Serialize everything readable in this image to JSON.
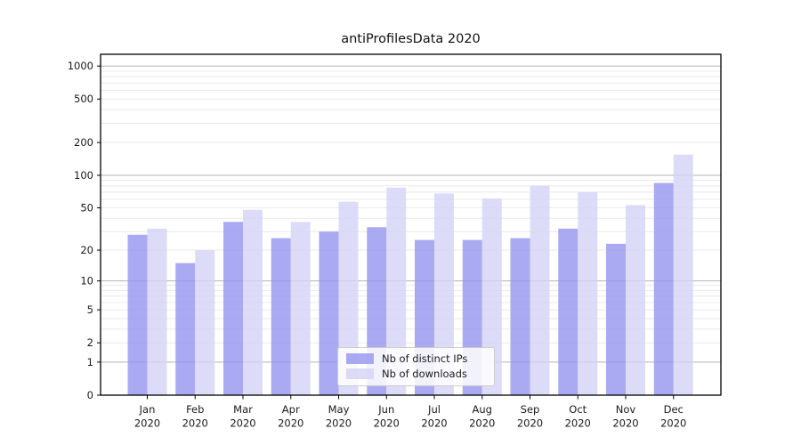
{
  "chart_data": {
    "type": "bar",
    "title": "antiProfilesData 2020",
    "categories": [
      "Jan",
      "Feb",
      "Mar",
      "Apr",
      "May",
      "Jun",
      "Jul",
      "Aug",
      "Sep",
      "Oct",
      "Nov",
      "Dec"
    ],
    "category_sublabel": "2020",
    "series": [
      {
        "name": "Nb of distinct IPs",
        "color": "#9595ef",
        "values": [
          28,
          15,
          37,
          26,
          30,
          33,
          25,
          25,
          26,
          32,
          23,
          85
        ]
      },
      {
        "name": "Nb of downloads",
        "color": "#d3d3f6",
        "values": [
          32,
          20,
          48,
          37,
          57,
          77,
          68,
          61,
          80,
          70,
          53,
          155
        ]
      }
    ],
    "bar_opacity": 0.8,
    "yscale": "log1p",
    "ylim": [
      0,
      1280
    ],
    "yticks": [
      0,
      1,
      2,
      5,
      10,
      20,
      50,
      100,
      200,
      500,
      1000
    ],
    "grid": "on",
    "grid_major_color": "#b3b3b3",
    "grid_minor_color": "#e9e9e9",
    "axis_color": "#000000",
    "tick_label_color": "#1a1a1a",
    "legend_position": "lower center",
    "xlabel": "",
    "ylabel": ""
  }
}
